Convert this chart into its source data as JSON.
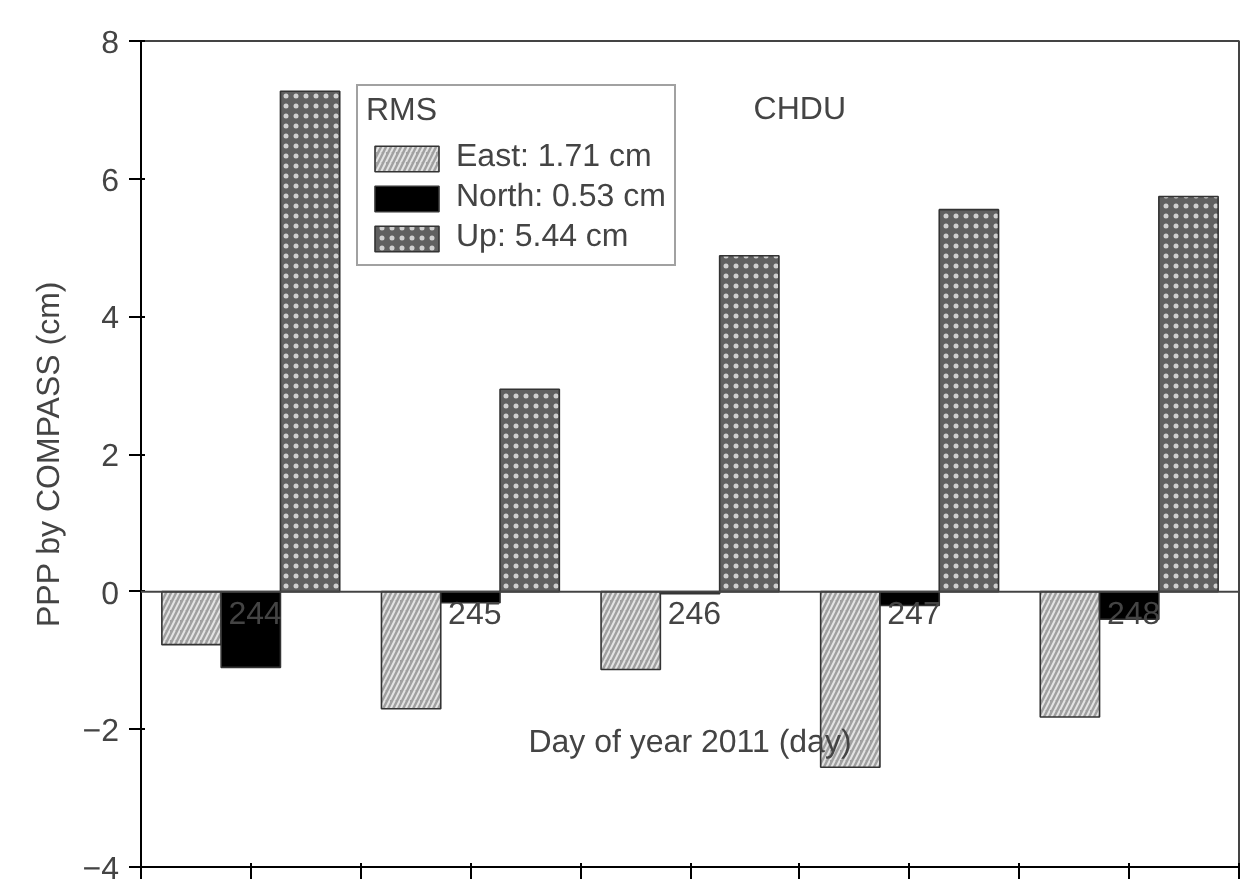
{
  "chart_data": {
    "type": "bar",
    "categories": [
      "244",
      "245",
      "246",
      "247",
      "248"
    ],
    "series": [
      {
        "name": "East: 1.71 cm",
        "color": "#a0a0a0",
        "values": [
          -0.77,
          -1.7,
          -1.13,
          -2.55,
          -1.82
        ]
      },
      {
        "name": "North: 0.53 cm",
        "color": "#000000",
        "values": [
          -1.1,
          -0.16,
          -0.03,
          -0.2,
          -0.4
        ]
      },
      {
        "name": "Up: 5.44 cm",
        "color": "#606060",
        "values": [
          7.27,
          2.94,
          4.88,
          5.55,
          5.74
        ]
      }
    ],
    "legend_title": "RMS",
    "legend": "top",
    "xlabel": "Day of year 2011 (day)",
    "ylabel": "PPP by COMPASS (cm)",
    "annotations": [
      "CHDU"
    ],
    "ylim": [
      -4,
      8
    ],
    "yticks": [
      -4,
      -2,
      0,
      2,
      4,
      6,
      8
    ],
    "tick_labels": "y",
    "grid": false
  }
}
